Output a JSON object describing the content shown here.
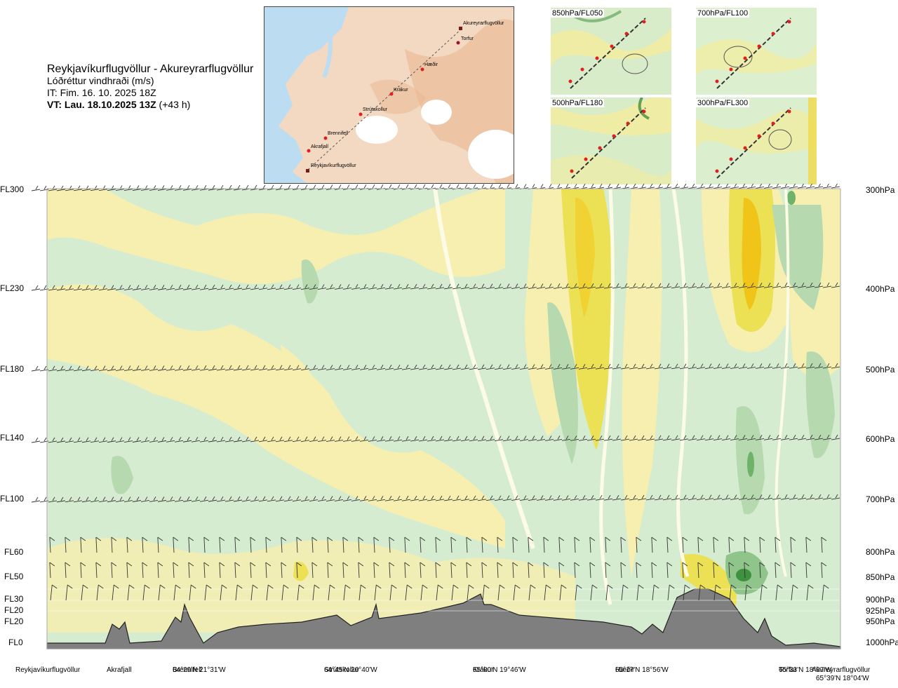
{
  "title": {
    "route": "Reykjavíkurflugvöllur - Akureyrarflugvöllur",
    "subtitle": "Lóðréttur vindhraði (m/s)",
    "it": "IT: Fim. 16. 10. 2025 18Z",
    "vt_bold": "VT: Lau. 18.10.2025 13Z",
    "vt_rest": "(+43 h)"
  },
  "route_map": {
    "waypoints": [
      "Akureyrarflugvöllur",
      "Torfur",
      "Hæðir",
      "Krákur",
      "Strútskollur",
      "Brennifell",
      "Akrafjall",
      "Reykjavíkurflugvöllur"
    ]
  },
  "level_maps": [
    {
      "label": "850hPa/FL050"
    },
    {
      "label": "700hPa/FL100"
    },
    {
      "label": "500hPa/FL180"
    },
    {
      "label": "300hPa/FL300"
    }
  ],
  "chart_data": {
    "type": "heatmap",
    "title": "Lóðréttur vindhraði (m/s)",
    "left_axis_labels": [
      {
        "label": "FL300",
        "level_hpa": 300
      },
      {
        "label": "FL230",
        "level_hpa": 400
      },
      {
        "label": "FL180",
        "level_hpa": 500
      },
      {
        "label": "FL140",
        "level_hpa": 600
      },
      {
        "label": "FL100",
        "level_hpa": 700
      },
      {
        "label": "FL60",
        "level_hpa": 800
      },
      {
        "label": "FL50",
        "level_hpa": 850
      },
      {
        "label": "FL30",
        "level_hpa": 900
      },
      {
        "label": "FL20",
        "level_hpa": 925
      },
      {
        "label": "FL20",
        "level_hpa": 950
      },
      {
        "label": "FL0",
        "level_hpa": 1000
      }
    ],
    "right_axis_labels": [
      "300hPa",
      "400hPa",
      "500hPa",
      "600hPa",
      "700hPa",
      "800hPa",
      "850hPa",
      "900hPa",
      "925hPa",
      "950hPa",
      "1000hPa"
    ],
    "waypoints": [
      {
        "name": "Reykjavíkurflugvöllur",
        "coord": ""
      },
      {
        "name": "Akrafjall",
        "coord": ""
      },
      {
        "name": "Brennifell",
        "coord": "64°29'N 21°31'W"
      },
      {
        "name": "Strútskollur",
        "coord": "64°45'N 20°40'W"
      },
      {
        "name": "Krákur",
        "coord": "65°00'N 19°46'W"
      },
      {
        "name": "Hæðir",
        "coord": "65°17'N 18°56'W"
      },
      {
        "name": "Torfur",
        "coord": "65°33'N 18°07'W"
      },
      {
        "name": "Akureyrarflugvöllur",
        "coord": "65°39'N 18°04'W"
      }
    ],
    "colors": {
      "strong_down": "#f0c419",
      "down": "#e8e04a",
      "weak_down": "#f7efae",
      "near_zero": "#fcfbe6",
      "weak_up": "#d6ecd0",
      "up": "#b6d9b0",
      "strong_up": "#4a9a4a",
      "terrain": "#808080"
    }
  }
}
